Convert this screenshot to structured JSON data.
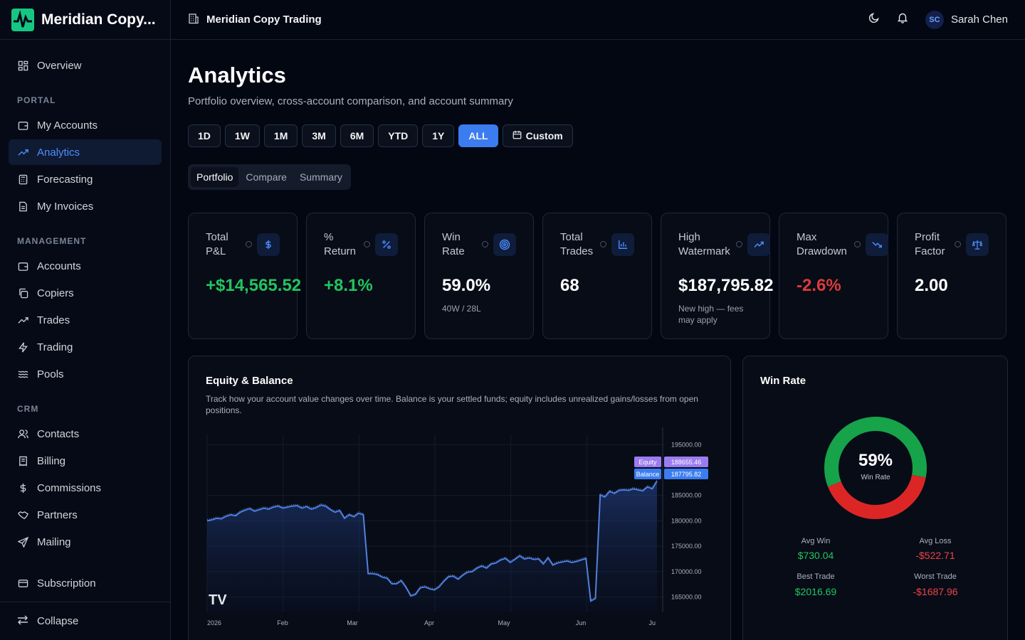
{
  "app": {
    "brand": "Meridian Copy...",
    "title": "Meridian Copy Trading"
  },
  "user": {
    "initials": "SC",
    "name": "Sarah Chen"
  },
  "sidebar": {
    "overview": "Overview",
    "sections": [
      {
        "title": "PORTAL",
        "items": [
          "My Accounts",
          "Analytics",
          "Forecasting",
          "My Invoices"
        ]
      },
      {
        "title": "MANAGEMENT",
        "items": [
          "Accounts",
          "Copiers",
          "Trades",
          "Trading",
          "Pools"
        ]
      },
      {
        "title": "CRM",
        "items": [
          "Contacts",
          "Billing",
          "Commissions",
          "Partners",
          "Mailing"
        ]
      }
    ],
    "subscription": "Subscription",
    "collapse": "Collapse",
    "active": "Analytics"
  },
  "page": {
    "title": "Analytics",
    "subtitle": "Portfolio overview, cross-account comparison, and account summary"
  },
  "ranges": [
    "1D",
    "1W",
    "1M",
    "3M",
    "6M",
    "YTD",
    "1Y",
    "ALL"
  ],
  "active_range": "ALL",
  "custom_label": "Custom",
  "tabs": [
    "Portfolio",
    "Compare",
    "Summary"
  ],
  "active_tab": "Portfolio",
  "stats": [
    {
      "label": "Total P&L",
      "value": "+$14,565.52",
      "tone": "green",
      "icon": "dollar-icon"
    },
    {
      "label": "% Return",
      "value": "+8.1%",
      "tone": "green",
      "icon": "percent-icon"
    },
    {
      "label": "Win Rate",
      "value": "59.0%",
      "tone": "white",
      "note": "40W / 28L",
      "icon": "target-icon"
    },
    {
      "label": "Total Trades",
      "value": "68",
      "tone": "white",
      "icon": "bar-chart-icon"
    },
    {
      "label": "High Watermark",
      "value": "$187,795.82",
      "tone": "white",
      "note": "New high — fees may apply",
      "icon": "trending-up-icon"
    },
    {
      "label": "Max Drawdown",
      "value": "-2.6%",
      "tone": "red",
      "icon": "trending-down-icon"
    },
    {
      "label": "Profit Factor",
      "value": "2.00",
      "tone": "white",
      "icon": "scale-icon"
    }
  ],
  "equity_panel": {
    "title": "Equity & Balance",
    "description": "Track how your account value changes over time. Balance is your settled funds; equity includes unrealized gains/losses from open positions.",
    "watermark": "TV"
  },
  "chart_data": {
    "type": "area",
    "x_ticks": [
      "2026",
      "Feb",
      "Mar",
      "Apr",
      "May",
      "Jun",
      "Ju"
    ],
    "y_ticks": [
      "195000.00",
      "185000.00",
      "180000.00",
      "175000.00",
      "170000.00",
      "165000.00"
    ],
    "ylim": [
      162000,
      197000
    ],
    "series": [
      {
        "name": "Equity",
        "last": "188655.46",
        "color": "#9b7cf0"
      },
      {
        "name": "Balance",
        "last": "187795.82",
        "color": "#3b7cf0",
        "values": [
          180000,
          180200,
          180500,
          180400,
          180900,
          181200,
          181000,
          181700,
          182100,
          182400,
          181900,
          182200,
          182500,
          182300,
          182700,
          182900,
          182500,
          182700,
          182900,
          183000,
          182500,
          182800,
          182300,
          182600,
          183100,
          182900,
          182200,
          181700,
          182000,
          180500,
          181200,
          180800,
          181500,
          181200,
          169600,
          169600,
          169400,
          168900,
          168700,
          167600,
          167600,
          168200,
          166900,
          165200,
          165500,
          166800,
          167000,
          166600,
          166400,
          167000,
          168100,
          169000,
          169100,
          168500,
          169300,
          169900,
          170000,
          170700,
          171100,
          170700,
          171500,
          171700,
          172300,
          172600,
          171800,
          172400,
          173100,
          172500,
          172700,
          172400,
          172500,
          171500,
          172700,
          171300,
          171700,
          171900,
          172100,
          171800,
          172000,
          172300,
          172600,
          164200,
          164700,
          185100,
          184700,
          185800,
          185400,
          186000,
          186100,
          186000,
          186300,
          186100,
          185900,
          186700,
          186300,
          187800
        ]
      }
    ]
  },
  "win_rate": {
    "title": "Win Rate",
    "percent": 59,
    "center_value": "59%",
    "center_label": "Win Rate",
    "colors": {
      "win": "#16a34a",
      "loss": "#dc2626"
    },
    "avg_win_label": "Avg Win",
    "avg_win": "$730.04",
    "avg_loss_label": "Avg Loss",
    "avg_loss": "-$522.71",
    "best_label": "Best Trade",
    "best": "$2016.69",
    "worst_label": "Worst Trade",
    "worst": "-$1687.96"
  }
}
